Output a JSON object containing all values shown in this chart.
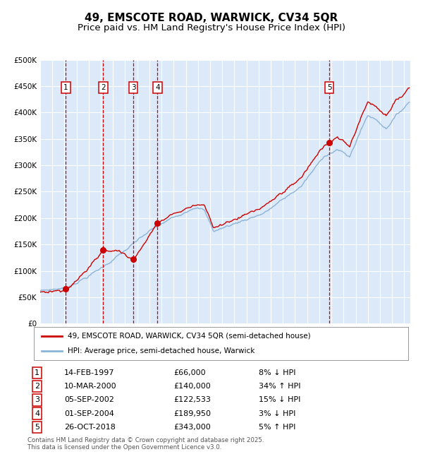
{
  "title": "49, EMSCOTE ROAD, WARWICK, CV34 5QR",
  "subtitle": "Price paid vs. HM Land Registry's House Price Index (HPI)",
  "ylim": [
    0,
    500000
  ],
  "yticks": [
    0,
    50000,
    100000,
    150000,
    200000,
    250000,
    300000,
    350000,
    400000,
    450000,
    500000
  ],
  "ytick_labels": [
    "£0",
    "£50K",
    "£100K",
    "£150K",
    "£200K",
    "£250K",
    "£300K",
    "£350K",
    "£400K",
    "£450K",
    "£500K"
  ],
  "xlim_start": 1995.0,
  "xlim_end": 2025.5,
  "plot_bg_color": "#dce9f8",
  "grid_color": "#ffffff",
  "hpi_line_color": "#8ab4d8",
  "price_line_color": "#cc0000",
  "vline_color": "#cc0000",
  "sale_marker_color": "#cc0000",
  "title_fontsize": 11,
  "subtitle_fontsize": 9.5,
  "legend_label_price": "49, EMSCOTE ROAD, WARWICK, CV34 5QR (semi-detached house)",
  "legend_label_hpi": "HPI: Average price, semi-detached house, Warwick",
  "sales": [
    {
      "num": 1,
      "date_label": "14-FEB-1997",
      "price_label": "£66,000",
      "rel": "8% ↓ HPI",
      "x": 1997.12,
      "price": 66000
    },
    {
      "num": 2,
      "date_label": "10-MAR-2000",
      "price_label": "£140,000",
      "rel": "34% ↑ HPI",
      "x": 2000.19,
      "price": 140000
    },
    {
      "num": 3,
      "date_label": "05-SEP-2002",
      "price_label": "£122,533",
      "rel": "15% ↓ HPI",
      "x": 2002.67,
      "price": 122533
    },
    {
      "num": 4,
      "date_label": "01-SEP-2004",
      "price_label": "£189,950",
      "rel": "3% ↓ HPI",
      "x": 2004.67,
      "price": 189950
    },
    {
      "num": 5,
      "date_label": "26-OCT-2018",
      "price_label": "£343,000",
      "rel": "5% ↑ HPI",
      "x": 2018.82,
      "price": 343000
    }
  ],
  "footer": "Contains HM Land Registry data © Crown copyright and database right 2025.\nThis data is licensed under the Open Government Licence v3.0."
}
